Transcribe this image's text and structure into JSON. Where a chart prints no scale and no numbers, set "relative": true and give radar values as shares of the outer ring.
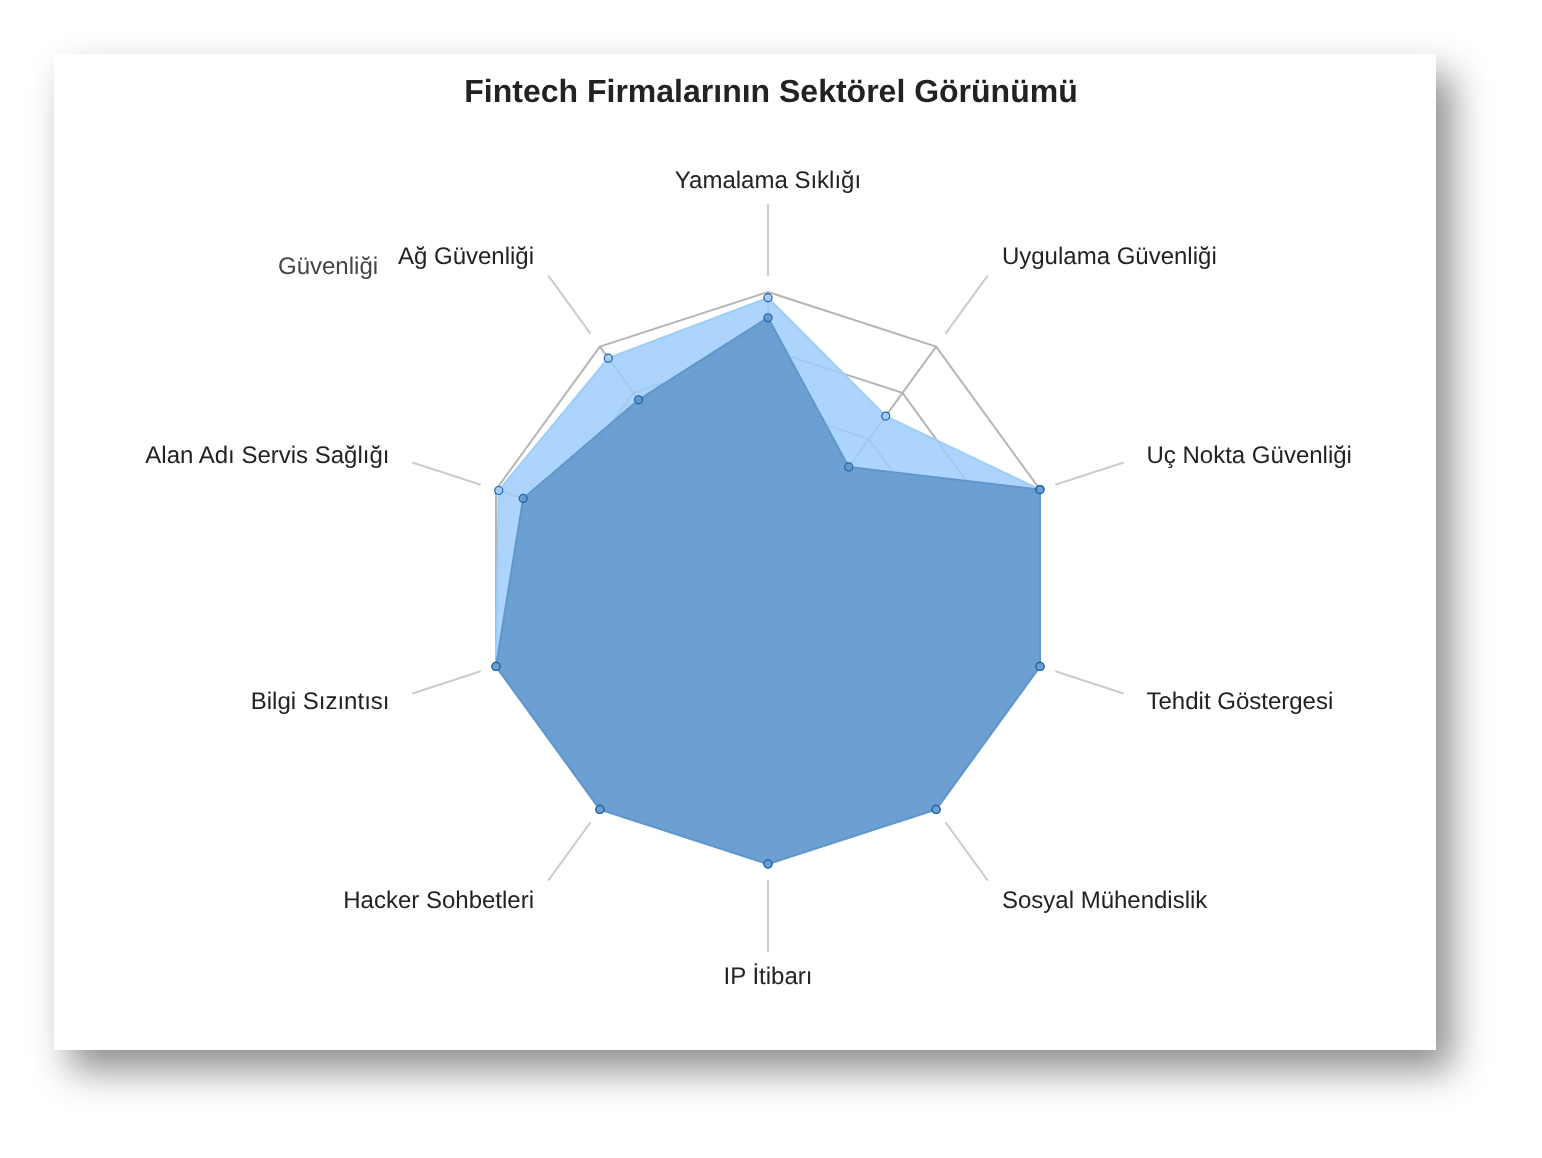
{
  "chart_data": {
    "type": "radar",
    "title": "Fintech Firmalarının Sektörel Görünümü",
    "relative": true,
    "marker": "circle",
    "grid": true,
    "legend": false,
    "categories": [
      "Yamalama Sıklığı",
      "Uygulama Güvenliği",
      "Uç Nokta Güvenliği",
      "Tehdit Göstergesi",
      "Sosyal Mühendislik",
      "IP İtibarı",
      "Hacker Sohbetleri",
      "Bilgi Sızıntısı",
      "Alan Adı Servis Sağlığı",
      "Ağ Güvenliği"
    ],
    "series": [
      {
        "color": "#9dcdfb",
        "values": [
          0.98,
          0.7,
          1,
          1,
          1,
          1,
          1,
          1,
          0.99,
          0.95
        ]
      },
      {
        "color": "#6097cb",
        "values": [
          0.91,
          0.48,
          1,
          1,
          1,
          1,
          1,
          1,
          0.9,
          0.77
        ]
      }
    ],
    "annotations": [
      "Güvenliği"
    ]
  }
}
